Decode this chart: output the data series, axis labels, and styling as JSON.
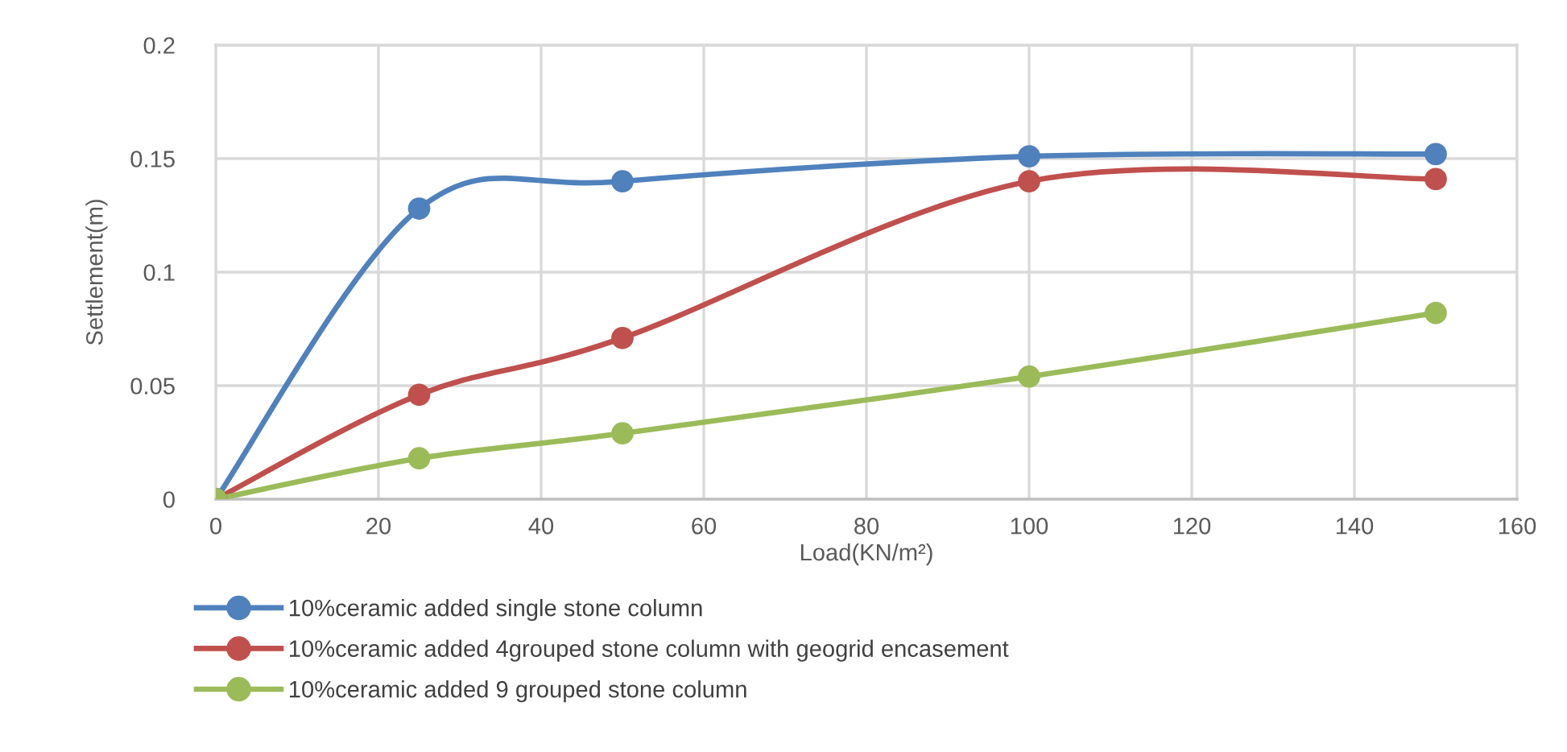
{
  "chart_data": {
    "type": "line",
    "xlabel": "Load(KN/m²)",
    "ylabel": "Settlement(m)",
    "x": [
      0,
      25,
      50,
      100,
      150
    ],
    "series": [
      {
        "name": "10%ceramic added single stone column",
        "color": "#4f81bd",
        "values": [
          0,
          0.128,
          0.14,
          0.151,
          0.152
        ]
      },
      {
        "name": "10%ceramic added 4grouped stone column with geogrid encasement",
        "color": "#c0504d",
        "values": [
          0,
          0.046,
          0.071,
          0.14,
          0.141
        ]
      },
      {
        "name": "10%ceramic added 9 grouped stone column",
        "color": "#9bbb59",
        "values": [
          0,
          0.018,
          0.029,
          0.054,
          0.082
        ]
      }
    ],
    "xlim": [
      0,
      160
    ],
    "xticks": [
      0,
      20,
      40,
      60,
      80,
      100,
      120,
      140,
      160
    ],
    "ylim": [
      0,
      0.2
    ],
    "yticks": [
      0,
      0.05,
      0.1,
      0.15,
      0.2
    ],
    "grid": true,
    "legend": "bottom",
    "marker": "circle",
    "line_style": "solid"
  }
}
